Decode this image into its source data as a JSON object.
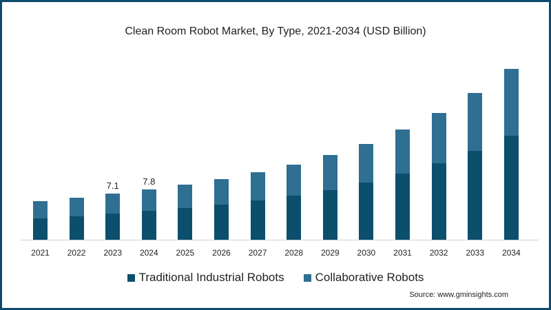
{
  "chart_data": {
    "type": "bar",
    "stacked": true,
    "title": "Clean Room Robot Market, By Type, 2021-2034 (USD Billion)",
    "xlabel": "",
    "ylabel": "",
    "categories": [
      "2021",
      "2022",
      "2023",
      "2024",
      "2025",
      "2026",
      "2027",
      "2028",
      "2029",
      "2030",
      "2031",
      "2032",
      "2033",
      "2034"
    ],
    "series": [
      {
        "name": "Traditional Industrial Robots",
        "color": "#0b4f6c",
        "values": [
          3.3,
          3.6,
          4.0,
          4.5,
          4.9,
          5.4,
          6.0,
          6.8,
          7.6,
          8.8,
          10.2,
          11.8,
          13.7,
          16.0
        ]
      },
      {
        "name": "Collaborative Robots",
        "color": "#2e6f92",
        "values": [
          2.6,
          2.9,
          3.1,
          3.3,
          3.6,
          3.9,
          4.4,
          4.8,
          5.5,
          6.0,
          6.8,
          7.7,
          8.9,
          10.3
        ]
      }
    ],
    "totals": [
      5.9,
      6.5,
      7.1,
      7.8,
      8.5,
      9.3,
      10.4,
      11.6,
      13.1,
      14.8,
      17.0,
      19.5,
      22.6,
      26.3
    ],
    "annotations": [
      {
        "category": "2023",
        "text": "7.1"
      },
      {
        "category": "2024",
        "text": "7.8"
      }
    ],
    "grid": false,
    "legend_position": "bottom",
    "ylim": [
      0,
      27
    ]
  },
  "labels": {
    "title": "Clean Room Robot Market, By Type, 2021-2034 (USD Billion)",
    "legend": [
      "Traditional Industrial Robots",
      "Collaborative Robots"
    ],
    "source": "Source: www.gminsights.com",
    "annot_2023": "7.1",
    "annot_2024": "7.8"
  }
}
